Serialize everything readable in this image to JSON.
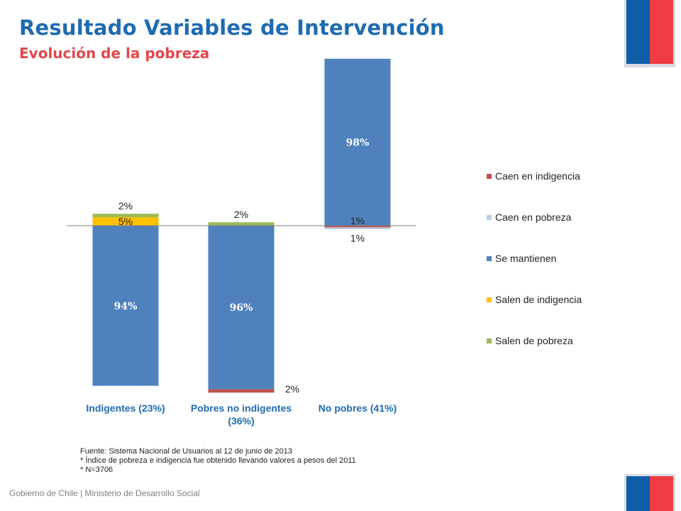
{
  "header": {
    "title": "Resultado Variables de Intervención",
    "subtitle": "Evolución de la pobreza"
  },
  "colors": {
    "title": "#1f6bb0",
    "subtitle": "#e2474a",
    "flag_blue": "#0f5fa8",
    "flag_red": "#ee3b44"
  },
  "chart_data": {
    "type": "bar",
    "stacked": true,
    "diverging": true,
    "categories": [
      "Indigentes (23%)",
      "Pobres no indigentes (36%)",
      "No pobres (41%)"
    ],
    "category_lines": [
      [
        "Indigentes (23%)"
      ],
      [
        "Pobres no indigentes",
        "(36%)"
      ],
      [
        "No pobres (41%)"
      ]
    ],
    "series": [
      {
        "name": "Caen en indigencia",
        "color": "#c0504d",
        "values": [
          0,
          -2,
          -1
        ],
        "labels": [
          "",
          "2%",
          "1%"
        ]
      },
      {
        "name": "Caen en pobreza",
        "color": "#b9cde5",
        "values": [
          0,
          0,
          -1
        ],
        "labels": [
          "",
          "",
          "1%"
        ]
      },
      {
        "name": "Se mantienen",
        "color": "#4f81bd",
        "values": [
          -94,
          -96,
          98
        ],
        "labels": [
          "94%",
          "96%",
          "98%"
        ]
      },
      {
        "name": "Salen de indigencia",
        "color": "#ffc000",
        "values": [
          5,
          0,
          0
        ],
        "labels": [
          "5%",
          "",
          ""
        ]
      },
      {
        "name": "Salen de pobreza",
        "color": "#9bbb59",
        "values": [
          2,
          2,
          0
        ],
        "labels": [
          "2%",
          "2%",
          ""
        ]
      }
    ],
    "legend_position": "right",
    "grid": false
  },
  "footnotes": {
    "source": "Fuente: Sistema Nacional de Usuarios al 12 de junio de 2013",
    "note_index": "* Índice de pobreza e indigencia fue obtenido llevando valores a pesos del 2011",
    "note_n": "* N=3706"
  },
  "footer": {
    "text": "Gobierno de Chile | Ministerio de Desarrollo Social"
  }
}
